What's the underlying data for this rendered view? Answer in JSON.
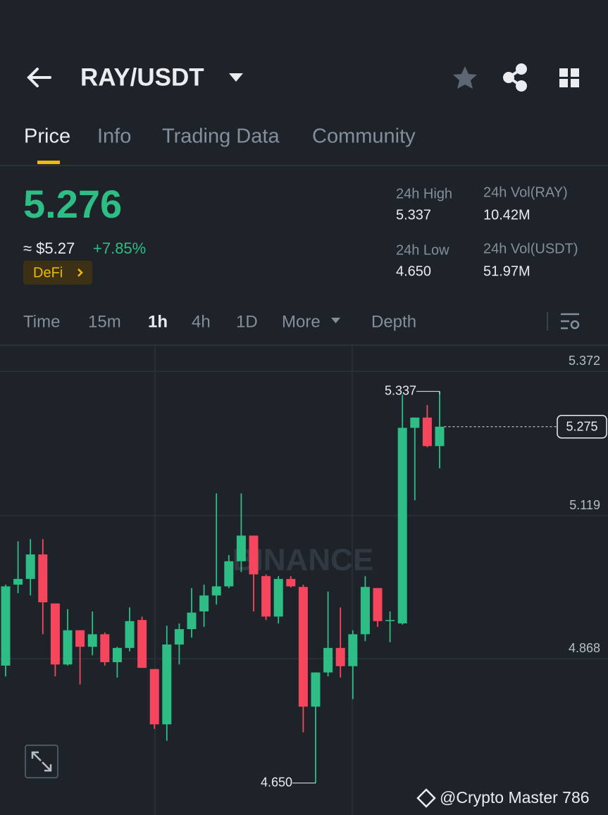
{
  "header": {
    "title": "RAY/USDT"
  },
  "tabs": [
    "Price",
    "Info",
    "Trading Data",
    "Community"
  ],
  "ticker": {
    "price": "5.276",
    "approx": "≈ $5.27",
    "change": "+7.85%",
    "tag": "DeFi"
  },
  "stats": [
    {
      "label": "24h High",
      "value": "5.337"
    },
    {
      "label": "24h Vol(RAY)",
      "value": "10.42M"
    },
    {
      "label": "24h Low",
      "value": "4.650"
    },
    {
      "label": "24h Vol(USDT)",
      "value": "51.97M"
    }
  ],
  "intervals": [
    "Time",
    "15m",
    "1h",
    "4h",
    "1D",
    "More",
    "Depth"
  ],
  "chart_data": {
    "type": "candlestick",
    "up_color": "#2ebd85",
    "down_color": "#f6465d",
    "ylim": [
      4.615,
      5.418
    ],
    "yticks": [
      5.372,
      5.119,
      4.868
    ],
    "grid": true,
    "open": [
      4.856,
      4.998,
      5.008,
      5.051,
      4.965,
      4.858,
      4.918,
      4.889,
      4.911,
      4.862,
      4.887,
      4.936,
      4.85,
      4.753,
      4.893,
      4.92,
      4.951,
      4.979,
      4.995,
      5.039,
      5.084,
      5.013,
      4.942,
      5.008,
      4.994,
      4.784,
      4.844,
      4.887,
      4.855,
      4.911,
      4.992,
      4.934,
      4.93,
      5.273,
      5.291,
      5.241
    ],
    "high": [
      4.998,
      5.074,
      5.078,
      5.078,
      4.965,
      4.955,
      4.918,
      4.951,
      4.914,
      4.889,
      4.958,
      4.942,
      4.85,
      4.926,
      4.93,
      4.992,
      4.998,
      5.158,
      5.05,
      5.158,
      5.084,
      5.016,
      5.013,
      5.013,
      4.998,
      4.844,
      4.986,
      4.958,
      4.918,
      5.013,
      4.992,
      4.951,
      5.331,
      5.291,
      5.313,
      5.337
    ],
    "low": [
      4.837,
      4.983,
      4.979,
      4.911,
      4.837,
      4.856,
      4.823,
      4.874,
      4.856,
      4.835,
      4.881,
      4.852,
      4.745,
      4.724,
      4.858,
      4.905,
      4.924,
      4.963,
      4.992,
      5.02,
      4.951,
      4.936,
      4.93,
      4.993,
      4.739,
      4.65,
      4.837,
      4.835,
      4.797,
      4.899,
      4.924,
      4.897,
      4.928,
      5.146,
      5.239,
      5.202
    ],
    "close": [
      4.995,
      5.008,
      5.051,
      4.967,
      4.858,
      4.918,
      4.889,
      4.911,
      4.862,
      4.887,
      4.934,
      4.852,
      4.753,
      4.893,
      4.92,
      4.949,
      4.979,
      4.995,
      5.039,
      5.084,
      5.016,
      4.942,
      5.008,
      4.995,
      4.784,
      4.844,
      4.887,
      4.855,
      4.911,
      4.994,
      4.934,
      4.936,
      5.273,
      5.291,
      5.241,
      5.275
    ],
    "max_label": {
      "value": 5.337,
      "label": "5.337"
    },
    "min_label": {
      "value": 4.65,
      "label": "4.650"
    },
    "last_price": {
      "value": 5.275,
      "label": "5.275"
    },
    "watermark": "BINANCE",
    "credit": "@Crypto Master 786"
  }
}
